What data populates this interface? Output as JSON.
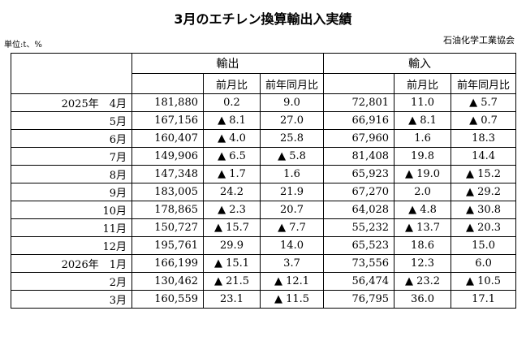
{
  "title": "3月のエチレン換算輸出入実績",
  "unit": "単位:t、%",
  "source": "石油化学工業協会",
  "headers": {
    "export": "輸出",
    "import": "輸入",
    "mom": "前月比",
    "yoy": "前年同月比"
  },
  "rows": [
    {
      "period": "2025年　4月",
      "export": "181,880",
      "export_mom": "0.2",
      "export_yoy": "9.0",
      "import": "72,801",
      "import_mom": "11.0",
      "import_yoy": "▲ 5.7"
    },
    {
      "period": "5月",
      "export": "167,156",
      "export_mom": "▲ 8.1",
      "export_yoy": "27.0",
      "import": "66,916",
      "import_mom": "▲ 8.1",
      "import_yoy": "▲ 0.7"
    },
    {
      "period": "6月",
      "export": "160,407",
      "export_mom": "▲ 4.0",
      "export_yoy": "25.8",
      "import": "67,960",
      "import_mom": "1.6",
      "import_yoy": "18.3"
    },
    {
      "period": "7月",
      "export": "149,906",
      "export_mom": "▲ 6.5",
      "export_yoy": "▲ 5.8",
      "import": "81,408",
      "import_mom": "19.8",
      "import_yoy": "14.4"
    },
    {
      "period": "8月",
      "export": "147,348",
      "export_mom": "▲ 1.7",
      "export_yoy": "1.6",
      "import": "65,923",
      "import_mom": "▲ 19.0",
      "import_yoy": "▲ 15.2"
    },
    {
      "period": "9月",
      "export": "183,005",
      "export_mom": "24.2",
      "export_yoy": "21.9",
      "import": "67,270",
      "import_mom": "2.0",
      "import_yoy": "▲ 29.2"
    },
    {
      "period": "10月",
      "export": "178,865",
      "export_mom": "▲ 2.3",
      "export_yoy": "20.7",
      "import": "64,028",
      "import_mom": "▲ 4.8",
      "import_yoy": "▲ 30.8"
    },
    {
      "period": "11月",
      "export": "150,727",
      "export_mom": "▲ 15.7",
      "export_yoy": "▲ 7.7",
      "import": "55,232",
      "import_mom": "▲ 13.7",
      "import_yoy": "▲ 20.3"
    },
    {
      "period": "12月",
      "export": "195,761",
      "export_mom": "29.9",
      "export_yoy": "14.0",
      "import": "65,523",
      "import_mom": "18.6",
      "import_yoy": "15.0"
    },
    {
      "period": "2026年　1月",
      "export": "166,199",
      "export_mom": "▲ 15.1",
      "export_yoy": "3.7",
      "import": "73,556",
      "import_mom": "12.3",
      "import_yoy": "6.0"
    },
    {
      "period": "2月",
      "export": "130,462",
      "export_mom": "▲ 21.5",
      "export_yoy": "▲ 12.1",
      "import": "56,474",
      "import_mom": "▲ 23.2",
      "import_yoy": "▲ 10.5"
    },
    {
      "period": "3月",
      "export": "160,559",
      "export_mom": "23.1",
      "export_yoy": "▲ 11.5",
      "import": "76,795",
      "import_mom": "36.0",
      "import_yoy": "17.1"
    }
  ]
}
